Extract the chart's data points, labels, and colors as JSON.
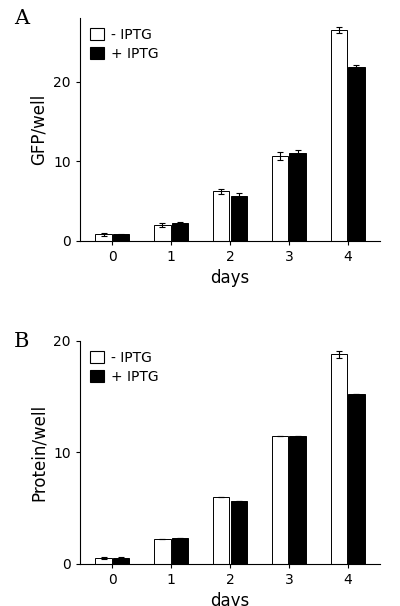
{
  "panel_A": {
    "label": "A",
    "days": [
      0,
      1,
      2,
      3,
      4
    ],
    "minus_iptg": [
      0.8,
      2.0,
      6.2,
      10.7,
      26.5
    ],
    "plus_iptg": [
      0.8,
      2.2,
      5.6,
      11.0,
      21.8
    ],
    "minus_iptg_err": [
      0.15,
      0.25,
      0.3,
      0.5,
      0.4
    ],
    "plus_iptg_err": [
      0.1,
      0.2,
      0.35,
      0.4,
      0.3
    ],
    "ylabel": "GFP/well",
    "xlabel": "days",
    "ylim": [
      0,
      28
    ],
    "yticks": [
      0,
      10,
      20
    ],
    "legend_minus": "- IPTG",
    "legend_plus": "+ IPTG"
  },
  "panel_B": {
    "label": "B",
    "days": [
      0,
      1,
      2,
      3,
      4
    ],
    "minus_iptg": [
      0.5,
      2.2,
      6.0,
      11.5,
      18.8
    ],
    "plus_iptg": [
      0.5,
      2.3,
      5.6,
      11.5,
      15.2
    ],
    "minus_iptg_err": [
      0.1,
      0.0,
      0.0,
      0.0,
      0.3
    ],
    "plus_iptg_err": [
      0.1,
      0.0,
      0.0,
      0.0,
      0.0
    ],
    "ylabel": "Protein/well",
    "xlabel": "days",
    "ylim": [
      0,
      20
    ],
    "yticks": [
      0,
      10,
      20
    ],
    "legend_minus": "- IPTG",
    "legend_plus": "+ IPTG"
  },
  "bar_width": 0.28,
  "color_minus": "#ffffff",
  "color_plus": "#000000",
  "edge_color": "#000000",
  "background_color": "#ffffff",
  "tick_fontsize": 10,
  "axis_label_fontsize": 12,
  "legend_fontsize": 10,
  "panel_label_fontsize": 15
}
